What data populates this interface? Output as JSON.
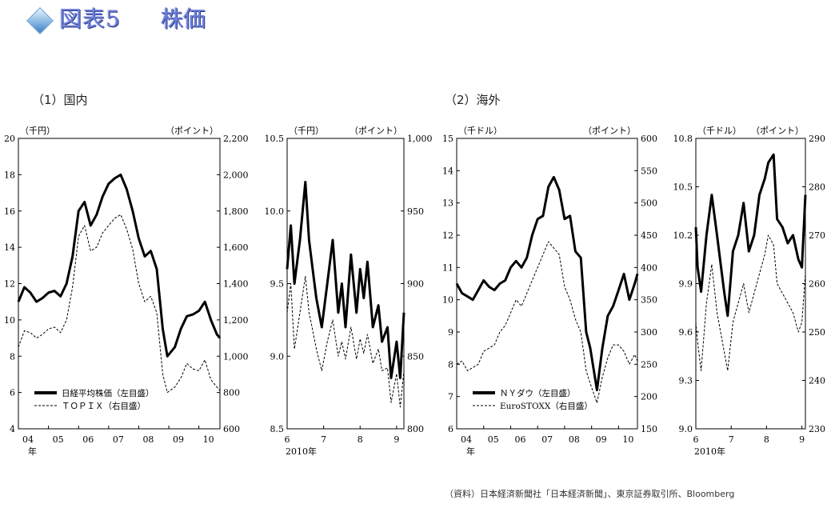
{
  "page": {
    "title": "図表5",
    "title_sub": "株価",
    "section_domestic": "（1）国内",
    "section_overseas": "（2）海外",
    "source_note": "（資料）日本経済新聞社「日本経済新聞」、東京証券取引所、Bloomberg"
  },
  "chart_data": [
    {
      "type": "line",
      "panel": "domestic-long",
      "ylabel_left": "（千円）",
      "ylabel_right": "（ポイント）",
      "y_left_ticks": [
        "20",
        "18",
        "16",
        "14",
        "12",
        "10",
        "8",
        "6",
        "4"
      ],
      "y_right_ticks": [
        "2,200",
        "2,000",
        "1,800",
        "1,600",
        "1,400",
        "1,200",
        "1,000",
        "800",
        "600"
      ],
      "ylim_left": [
        4,
        20
      ],
      "ylim_right": [
        600,
        2200
      ],
      "x_ticks": [
        "04",
        "05",
        "06",
        "07",
        "08",
        "09",
        "10"
      ],
      "x_unit": "年",
      "xlim": [
        2004.0,
        2010.7
      ],
      "series": [
        {
          "name": "日経平均株価（左目盛）",
          "axis": "left",
          "style": "solid-thick",
          "x": [
            2004.0,
            2004.2,
            2004.4,
            2004.6,
            2004.8,
            2005.0,
            2005.2,
            2005.4,
            2005.6,
            2005.8,
            2006.0,
            2006.2,
            2006.4,
            2006.6,
            2006.8,
            2007.0,
            2007.2,
            2007.4,
            2007.6,
            2007.8,
            2008.0,
            2008.2,
            2008.4,
            2008.6,
            2008.8,
            2008.95,
            2009.2,
            2009.4,
            2009.6,
            2009.8,
            2010.0,
            2010.2,
            2010.4,
            2010.6,
            2010.7
          ],
          "y": [
            11.0,
            11.8,
            11.5,
            11.0,
            11.2,
            11.5,
            11.6,
            11.3,
            12.0,
            13.5,
            16.0,
            16.5,
            15.2,
            15.8,
            16.8,
            17.5,
            17.8,
            18.0,
            17.2,
            16.0,
            14.5,
            13.5,
            13.8,
            12.8,
            9.5,
            8.0,
            8.5,
            9.5,
            10.2,
            10.3,
            10.5,
            11.0,
            10.0,
            9.2,
            9.0
          ]
        },
        {
          "name": "ＴＯＰＩＸ（右目盛）",
          "axis": "right",
          "style": "dashed",
          "x": [
            2004.0,
            2004.2,
            2004.4,
            2004.6,
            2004.8,
            2005.0,
            2005.2,
            2005.4,
            2005.6,
            2005.8,
            2006.0,
            2006.2,
            2006.4,
            2006.6,
            2006.8,
            2007.0,
            2007.2,
            2007.4,
            2007.6,
            2007.8,
            2008.0,
            2008.2,
            2008.4,
            2008.6,
            2008.8,
            2008.95,
            2009.2,
            2009.4,
            2009.6,
            2009.8,
            2010.0,
            2010.2,
            2010.4,
            2010.6,
            2010.7
          ],
          "y": [
            1050,
            1140,
            1130,
            1100,
            1120,
            1150,
            1160,
            1130,
            1200,
            1380,
            1660,
            1720,
            1580,
            1600,
            1680,
            1720,
            1760,
            1780,
            1700,
            1590,
            1400,
            1300,
            1330,
            1240,
            900,
            800,
            830,
            880,
            960,
            930,
            920,
            980,
            870,
            830,
            810
          ]
        }
      ],
      "legend": "bottom-left"
    },
    {
      "type": "line",
      "panel": "domestic-2010",
      "ylabel_left": "（千円）",
      "ylabel_right": "（ポイント）",
      "y_left_ticks": [
        "10.5",
        "10.0",
        "9.5",
        "9.0",
        "8.5"
      ],
      "y_right_ticks": [
        "1,000",
        "950",
        "900",
        "850",
        "800"
      ],
      "ylim_left": [
        8.5,
        10.5
      ],
      "ylim_right": [
        800,
        1000
      ],
      "x_ticks": [
        "6",
        "7",
        "8",
        "9"
      ],
      "x_unit": "2010年",
      "xlim": [
        6.0,
        9.2
      ],
      "series": [
        {
          "name": "日経平均株価（左目盛）",
          "axis": "left",
          "style": "solid-thick",
          "x": [
            6.0,
            6.1,
            6.2,
            6.35,
            6.5,
            6.6,
            6.7,
            6.8,
            6.95,
            7.1,
            7.25,
            7.4,
            7.5,
            7.6,
            7.75,
            7.9,
            8.0,
            8.1,
            8.2,
            8.35,
            8.5,
            8.6,
            8.75,
            8.85,
            9.0,
            9.1,
            9.2
          ],
          "y": [
            9.6,
            9.9,
            9.5,
            9.8,
            10.2,
            9.8,
            9.6,
            9.4,
            9.2,
            9.5,
            9.8,
            9.3,
            9.5,
            9.2,
            9.7,
            9.3,
            9.6,
            9.4,
            9.65,
            9.2,
            9.35,
            9.1,
            9.2,
            8.85,
            9.1,
            8.85,
            9.3
          ]
        },
        {
          "name": "ＴＯＰＩＸ（右目盛）",
          "axis": "right",
          "style": "dashed",
          "x": [
            6.0,
            6.1,
            6.2,
            6.35,
            6.5,
            6.6,
            6.7,
            6.8,
            6.95,
            7.1,
            7.25,
            7.4,
            7.5,
            7.6,
            7.75,
            7.9,
            8.0,
            8.1,
            8.2,
            8.35,
            8.5,
            8.6,
            8.75,
            8.85,
            9.0,
            9.1,
            9.2
          ],
          "y": [
            880,
            900,
            855,
            880,
            905,
            880,
            868,
            855,
            840,
            860,
            875,
            850,
            860,
            848,
            870,
            848,
            862,
            852,
            865,
            845,
            855,
            840,
            842,
            818,
            838,
            815,
            840
          ]
        }
      ]
    },
    {
      "type": "line",
      "panel": "overseas-long",
      "ylabel_left": "（千ドル）",
      "ylabel_right": "（ポイント）",
      "y_left_ticks": [
        "15",
        "14",
        "13",
        "12",
        "11",
        "10",
        "9",
        "8",
        "7",
        "6"
      ],
      "y_right_ticks": [
        "600",
        "550",
        "500",
        "450",
        "400",
        "350",
        "300",
        "250",
        "200",
        "150"
      ],
      "ylim_left": [
        6,
        15
      ],
      "ylim_right": [
        150,
        600
      ],
      "x_ticks": [
        "04",
        "05",
        "06",
        "07",
        "08",
        "09",
        "10"
      ],
      "x_unit": "年",
      "xlim": [
        2004.0,
        2010.7
      ],
      "series": [
        {
          "name": "ＮＹダウ（左目盛）",
          "axis": "left",
          "style": "solid-thick",
          "x": [
            2004.0,
            2004.2,
            2004.4,
            2004.6,
            2004.8,
            2005.0,
            2005.2,
            2005.4,
            2005.6,
            2005.8,
            2006.0,
            2006.2,
            2006.4,
            2006.6,
            2006.8,
            2007.0,
            2007.2,
            2007.4,
            2007.6,
            2007.8,
            2008.0,
            2008.2,
            2008.4,
            2008.6,
            2008.8,
            2008.95,
            2009.2,
            2009.4,
            2009.6,
            2009.8,
            2010.0,
            2010.2,
            2010.4,
            2010.6,
            2010.7
          ],
          "y": [
            10.5,
            10.2,
            10.1,
            10.0,
            10.3,
            10.6,
            10.4,
            10.3,
            10.5,
            10.6,
            11.0,
            11.2,
            11.0,
            11.3,
            12.0,
            12.5,
            12.6,
            13.5,
            13.8,
            13.4,
            12.5,
            12.6,
            11.5,
            11.3,
            9.0,
            8.5,
            7.2,
            8.5,
            9.5,
            9.8,
            10.3,
            10.8,
            10.0,
            10.5,
            10.8
          ]
        },
        {
          "name": "EuroSTOXX（右目盛）",
          "axis": "right",
          "style": "dashed",
          "x": [
            2004.0,
            2004.2,
            2004.4,
            2004.6,
            2004.8,
            2005.0,
            2005.2,
            2005.4,
            2005.6,
            2005.8,
            2006.0,
            2006.2,
            2006.4,
            2006.6,
            2006.8,
            2007.0,
            2007.2,
            2007.4,
            2007.6,
            2007.8,
            2008.0,
            2008.2,
            2008.4,
            2008.6,
            2008.8,
            2008.95,
            2009.2,
            2009.4,
            2009.6,
            2009.8,
            2010.0,
            2010.2,
            2010.4,
            2010.6,
            2010.7
          ],
          "y": [
            250,
            255,
            240,
            245,
            250,
            270,
            275,
            280,
            300,
            310,
            330,
            350,
            340,
            360,
            380,
            400,
            420,
            440,
            430,
            420,
            370,
            350,
            320,
            300,
            240,
            220,
            190,
            230,
            260,
            280,
            280,
            270,
            250,
            265,
            255
          ]
        }
      ],
      "legend": "bottom-left"
    },
    {
      "type": "line",
      "panel": "overseas-2010",
      "ylabel_left": "（千ドル）",
      "ylabel_right": "（ポイント）",
      "y_left_ticks": [
        "10.8",
        "10.5",
        "10.2",
        "9.9",
        "9.6",
        "9.3",
        "9.0"
      ],
      "y_right_ticks": [
        "290",
        "280",
        "270",
        "260",
        "250",
        "240",
        "230"
      ],
      "ylim_left": [
        9.0,
        10.8
      ],
      "ylim_right": [
        230,
        290
      ],
      "x_ticks": [
        "6",
        "7",
        "8",
        "9"
      ],
      "x_unit": "2010年",
      "xlim": [
        6.0,
        9.1
      ],
      "series": [
        {
          "name": "ＮＹダウ（左目盛）",
          "axis": "left",
          "style": "solid-thick",
          "x": [
            6.0,
            6.05,
            6.15,
            6.3,
            6.45,
            6.6,
            6.8,
            6.9,
            7.05,
            7.2,
            7.35,
            7.5,
            7.65,
            7.8,
            7.95,
            8.05,
            8.2,
            8.3,
            8.45,
            8.6,
            8.75,
            8.9,
            9.0,
            9.1
          ],
          "y": [
            10.25,
            10.0,
            9.85,
            10.2,
            10.45,
            10.2,
            9.85,
            9.7,
            10.1,
            10.2,
            10.4,
            10.1,
            10.2,
            10.45,
            10.55,
            10.65,
            10.7,
            10.3,
            10.25,
            10.15,
            10.2,
            10.05,
            10.0,
            10.45
          ]
        },
        {
          "name": "EuroSTOXX（右目盛）",
          "axis": "right",
          "style": "dashed",
          "x": [
            6.0,
            6.05,
            6.15,
            6.3,
            6.45,
            6.6,
            6.8,
            6.9,
            7.05,
            7.2,
            7.35,
            7.5,
            7.65,
            7.8,
            7.95,
            8.05,
            8.2,
            8.3,
            8.45,
            8.6,
            8.75,
            8.9,
            9.0,
            9.1
          ],
          "y": [
            252,
            248,
            242,
            256,
            264,
            254,
            246,
            242,
            252,
            256,
            260,
            254,
            258,
            262,
            266,
            270,
            268,
            260,
            258,
            256,
            254,
            250,
            252,
            262
          ]
        }
      ]
    }
  ]
}
